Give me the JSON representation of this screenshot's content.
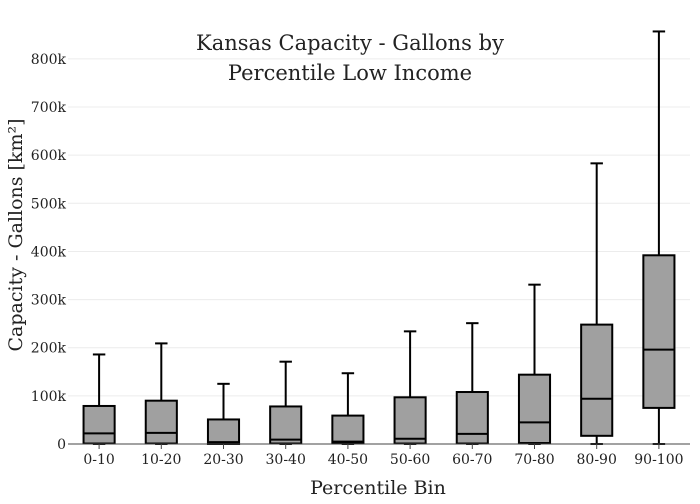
{
  "chart_data": {
    "type": "box",
    "title": [
      "Kansas Capacity - Gallons by",
      "Percentile Low Income"
    ],
    "xlabel": "Percentile Bin",
    "ylabel": "Capacity - Gallons",
    "ylabel_unit": "[km²]",
    "ylim": [
      0,
      860000
    ],
    "yticks": [
      0,
      100000,
      200000,
      300000,
      400000,
      500000,
      600000,
      700000,
      800000
    ],
    "ytick_labels": [
      "0",
      "100k",
      "200k",
      "300k",
      "400k",
      "500k",
      "600k",
      "700k",
      "800k"
    ],
    "grid": true,
    "box_color": "#a0a0a0",
    "line_color": "#000000",
    "categories": [
      "0-10",
      "10-20",
      "20-30",
      "30-40",
      "40-50",
      "50-60",
      "60-70",
      "70-80",
      "80-90",
      "90-100"
    ],
    "boxes": [
      {
        "min": 0,
        "q1": 1000,
        "median": 22000,
        "q3": 79000,
        "max": 186000
      },
      {
        "min": 0,
        "q1": 1000,
        "median": 23000,
        "q3": 90000,
        "max": 209000
      },
      {
        "min": 0,
        "q1": 0,
        "median": 4000,
        "q3": 51000,
        "max": 125000
      },
      {
        "min": 0,
        "q1": 1000,
        "median": 9000,
        "q3": 78000,
        "max": 171000
      },
      {
        "min": 0,
        "q1": 1000,
        "median": 5000,
        "q3": 59000,
        "max": 147000
      },
      {
        "min": 0,
        "q1": 1000,
        "median": 11000,
        "q3": 97000,
        "max": 234000
      },
      {
        "min": 0,
        "q1": 1000,
        "median": 21000,
        "q3": 108000,
        "max": 251000
      },
      {
        "min": 0,
        "q1": 2000,
        "median": 45000,
        "q3": 144000,
        "max": 331000
      },
      {
        "min": 0,
        "q1": 17000,
        "median": 94000,
        "q3": 248000,
        "max": 583000
      },
      {
        "min": 0,
        "q1": 75000,
        "median": 196000,
        "q3": 392000,
        "max": 857000
      }
    ]
  }
}
